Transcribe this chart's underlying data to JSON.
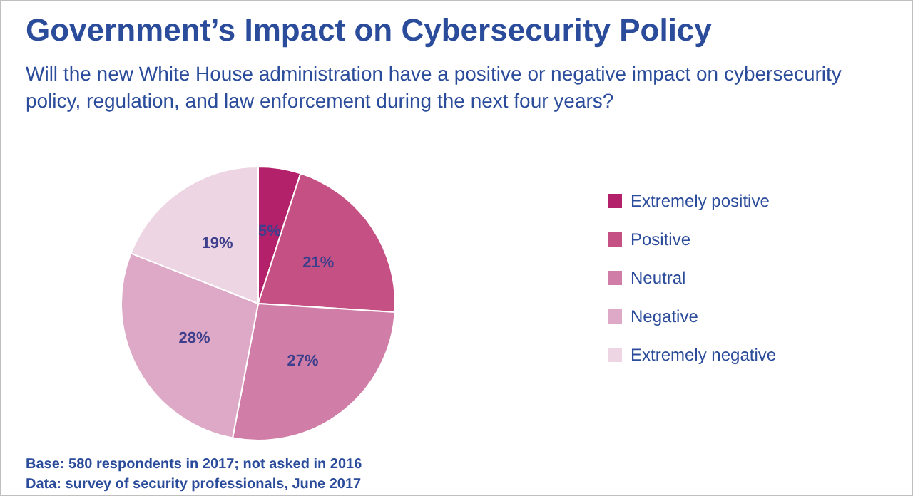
{
  "chart_data": {
    "type": "pie",
    "title": "Government’s Impact on Cybersecurity Policy",
    "subtitle": "Will the new White House administration have a positive or negative impact on cybersecurity policy, regulation, and law enforcement during the next four years?",
    "categories": [
      "Extremely positive",
      "Positive",
      "Neutral",
      "Negative",
      "Extremely negative"
    ],
    "values": [
      5,
      21,
      27,
      28,
      19
    ],
    "value_labels": [
      "5%",
      "21%",
      "27%",
      "28%",
      "19%"
    ],
    "colors": [
      "#b3216b",
      "#c55184",
      "#d07ea8",
      "#dda9c6",
      "#eed5e3"
    ],
    "legend": "right",
    "annotations": [
      "Base: 580 respondents in 2017; not asked in 2016",
      "Data: survey of security professionals, June 2017"
    ]
  }
}
